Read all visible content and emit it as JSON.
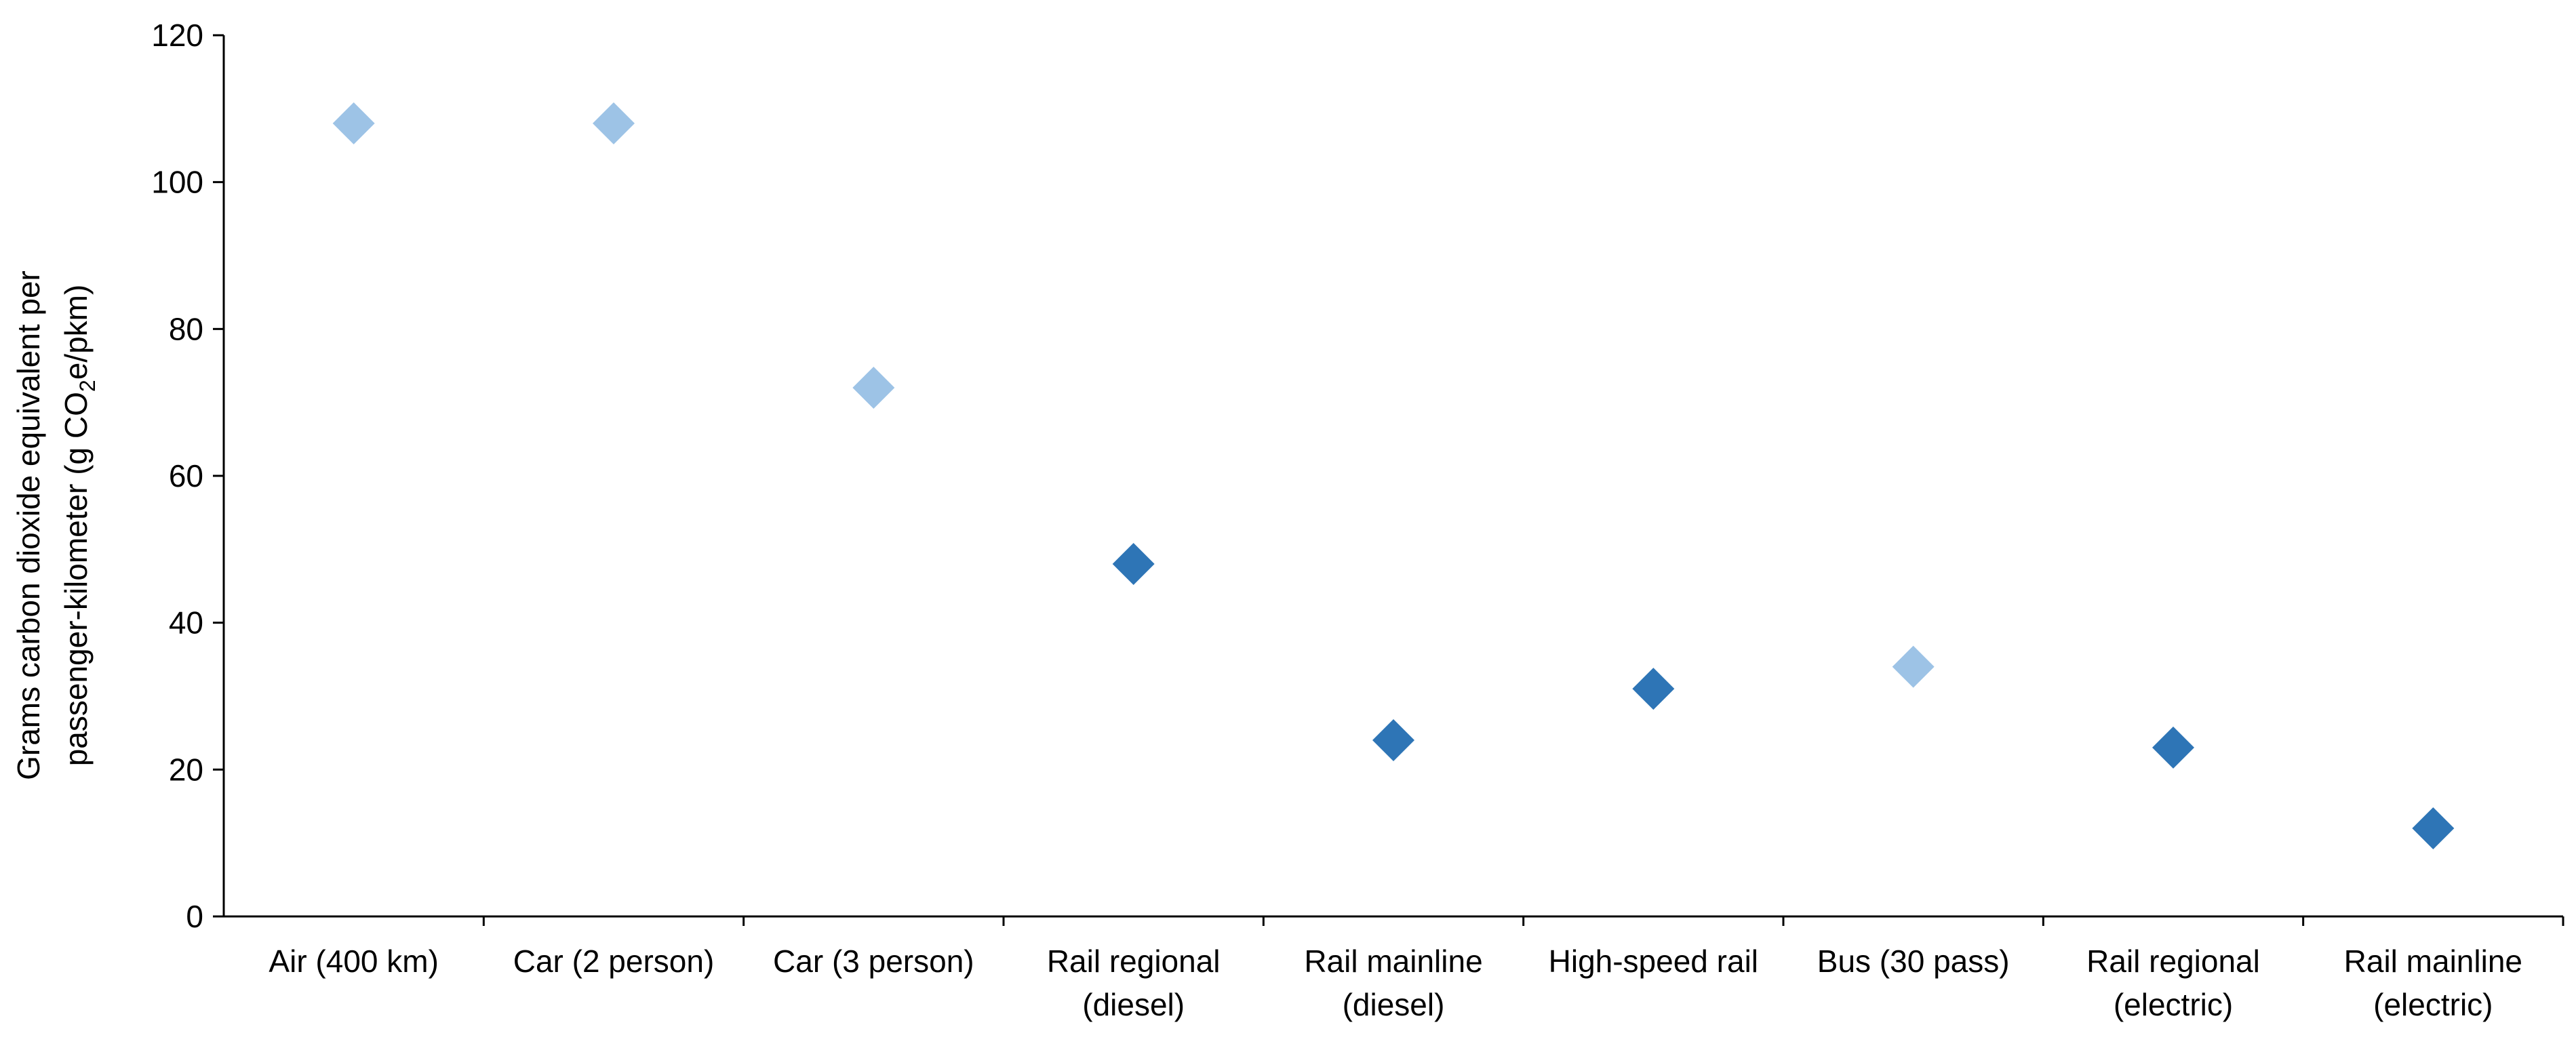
{
  "chart_data": {
    "type": "scatter",
    "title": "",
    "xlabel": "",
    "ylabel": {
      "line1": "Grams carbon dioxide equivalent per",
      "line2_prefix": "passenger-kilometer (g  CO",
      "line2_sub": "2",
      "line2_suffix": "e/pkm)"
    },
    "ylim": [
      0,
      120
    ],
    "yticks": [
      "0",
      "20",
      "40",
      "60",
      "80",
      "100",
      "120"
    ],
    "grid": false,
    "colors": {
      "light": "#9DC3E6",
      "dark": "#2E75B6",
      "axis": "#000000"
    },
    "categories": [
      [
        "Air (400 km)"
      ],
      [
        "Car (2 person)"
      ],
      [
        "Car (3 person)"
      ],
      [
        "Rail regional",
        "(diesel)"
      ],
      [
        "Rail mainline",
        "(diesel)"
      ],
      [
        "High-speed rail"
      ],
      [
        "Bus (30 pass)"
      ],
      [
        "Rail regional",
        "(electric)"
      ],
      [
        "Rail mainline",
        "(electric)"
      ]
    ],
    "values": [
      108,
      108,
      72,
      48,
      24,
      31,
      34,
      23,
      12
    ],
    "marker_shade": [
      "light",
      "light",
      "light",
      "dark",
      "dark",
      "dark",
      "light",
      "dark",
      "dark"
    ]
  }
}
